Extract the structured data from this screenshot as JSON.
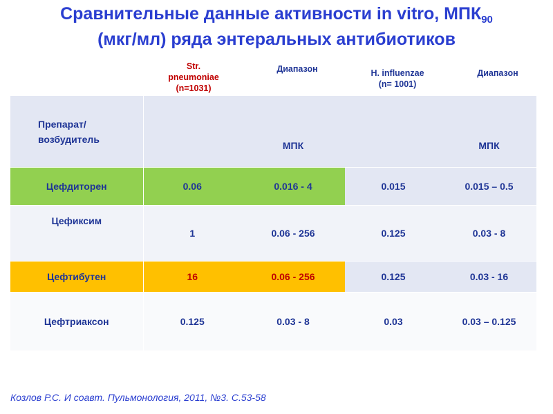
{
  "title": {
    "line1_text": "Сравнительные данные активности in vitro, МПК",
    "line1_sub": "90",
    "line2_text": "(мкг/мл) ряда энтеральных антибиотиков"
  },
  "column_headers": {
    "str_line1": "Str.",
    "str_line2": "pneumoniae",
    "str_line3": "(n=1031)",
    "range1": "Диапазон",
    "hinf_line1": "H. influenzae",
    "hinf_line2": "(n= 1001)",
    "range2": "Диапазон"
  },
  "table": {
    "row_header_line1": "Препарат/",
    "row_header_line2": "возбудитель",
    "mpk1": "МПК",
    "mpk2": "МПК",
    "rows": [
      {
        "drug": "Цефдиторен",
        "str_mic": "0.06",
        "str_range": "0.016 - 4",
        "h_mic": "0.015",
        "h_range": "0.015 – 0.5"
      },
      {
        "drug": "Цефиксим",
        "str_mic": "1",
        "str_range": "0.06 - 256",
        "h_mic": "0.125",
        "h_range": "0.03 - 8"
      },
      {
        "drug": "Цефтибутен",
        "str_mic": "16",
        "str_range": "0.06 - 256",
        "h_mic": "0.125",
        "h_range": "0.03 - 16"
      },
      {
        "drug": "Цефтриаксон",
        "str_mic": "0.125",
        "str_range": "0.03 - 8",
        "h_mic": "0.03",
        "h_range": "0.03 – 0.125"
      }
    ]
  },
  "footer": "Козлов Р.С. И соавт. Пульмонология, 2011, №3. С.53-58",
  "colors": {
    "title_blue": "#2a3ed0",
    "text_blue": "#1f3596",
    "header_red": "#c00000",
    "highlight_green": "#92d050",
    "highlight_orange": "#ffc000",
    "band_light": "#e3e7f3"
  }
}
